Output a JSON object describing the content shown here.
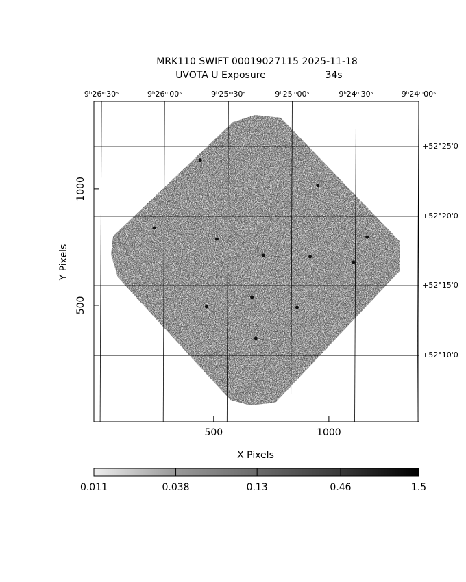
{
  "chart_data": {
    "type": "image",
    "title": "MRK110 SWIFT 00019027115 2025-11-18",
    "subtitle": "UVOTA U Exposure",
    "exposure": "34s",
    "xlabel": "X Pixels",
    "ylabel": "Y Pixels",
    "xlim": [
      -20,
      1390
    ],
    "ylim": [
      0,
      1376
    ],
    "xticks": [
      500,
      1000
    ],
    "yticks": [
      500,
      1000
    ],
    "top_ticks": [
      {
        "value": 13,
        "label": "9ʰ26ᵐ30ˢ"
      },
      {
        "value": 287,
        "label": "9ʰ26ᵐ00ˢ"
      },
      {
        "value": 564,
        "label": "9ʰ25ᵐ30ˢ"
      },
      {
        "value": 841,
        "label": "9ʰ25ᵐ00ˢ"
      },
      {
        "value": 1118,
        "label": "9ʰ24ᵐ30ˢ"
      },
      {
        "value": 1390,
        "label": "9ʰ24ᵐ00ˢ"
      }
    ],
    "right_ticks": [
      {
        "value": 1182,
        "label": "+52°25'0"
      },
      {
        "value": 882,
        "label": "+52°20'0"
      },
      {
        "value": 585,
        "label": "+52°15'0"
      },
      {
        "value": 285,
        "label": "+52°10'0"
      }
    ],
    "sources": {
      "x": [
        716,
        1166,
        242,
        469,
        666,
        862,
        683,
        952,
        442,
        1107,
        919,
        514
      ],
      "y": [
        715,
        794,
        832,
        494,
        535,
        491,
        359,
        1015,
        1124,
        685,
        709,
        785
      ]
    },
    "colorbar": {
      "scale": "log",
      "lim": [
        0.011,
        1.5
      ],
      "ticks": [
        0.011,
        0.038,
        0.13,
        0.46,
        1.5
      ]
    }
  }
}
